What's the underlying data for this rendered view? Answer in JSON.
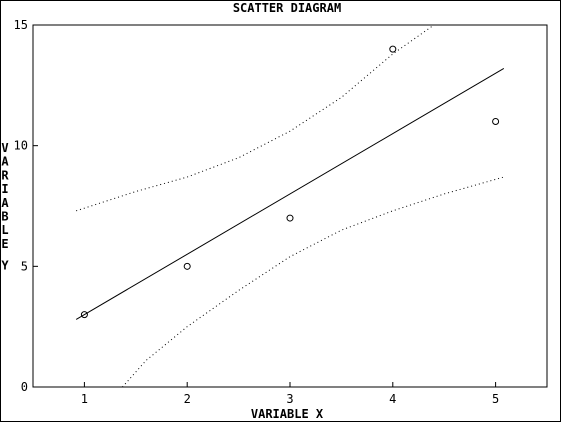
{
  "chart_data": {
    "type": "scatter",
    "title": "SCATTER DIAGRAM",
    "xlabel": "VARIABLE X",
    "ylabel": "VARIABLE Y",
    "xlim": [
      0.5,
      5.5
    ],
    "ylim": [
      0,
      15
    ],
    "xticks": [
      "1",
      "2",
      "3",
      "4",
      "5"
    ],
    "yticks": [
      "0",
      "5",
      "10",
      "15"
    ],
    "grid": false,
    "legend": "none",
    "points": [
      {
        "x": 1,
        "y": 3
      },
      {
        "x": 2,
        "y": 5
      },
      {
        "x": 3,
        "y": 7
      },
      {
        "x": 4,
        "y": 14
      },
      {
        "x": 5,
        "y": 11
      }
    ],
    "regression_line": {
      "x": [
        0.92,
        5.08
      ],
      "y": [
        2.8,
        13.2
      ]
    },
    "upper_band": {
      "x": [
        0.92,
        1.5,
        2.0,
        2.5,
        3.0,
        3.5,
        4.0,
        4.4
      ],
      "y": [
        7.3,
        8.1,
        8.7,
        9.5,
        10.6,
        12.0,
        13.8,
        15.0
      ]
    },
    "lower_band": {
      "x": [
        1.37,
        1.6,
        2.0,
        2.5,
        3.0,
        3.5,
        4.0,
        4.5,
        5.08
      ],
      "y": [
        0.0,
        1.1,
        2.5,
        4.0,
        5.4,
        6.5,
        7.3,
        8.0,
        8.7
      ]
    },
    "colors": {
      "axis": "#000000",
      "background": "#ffffff"
    }
  }
}
